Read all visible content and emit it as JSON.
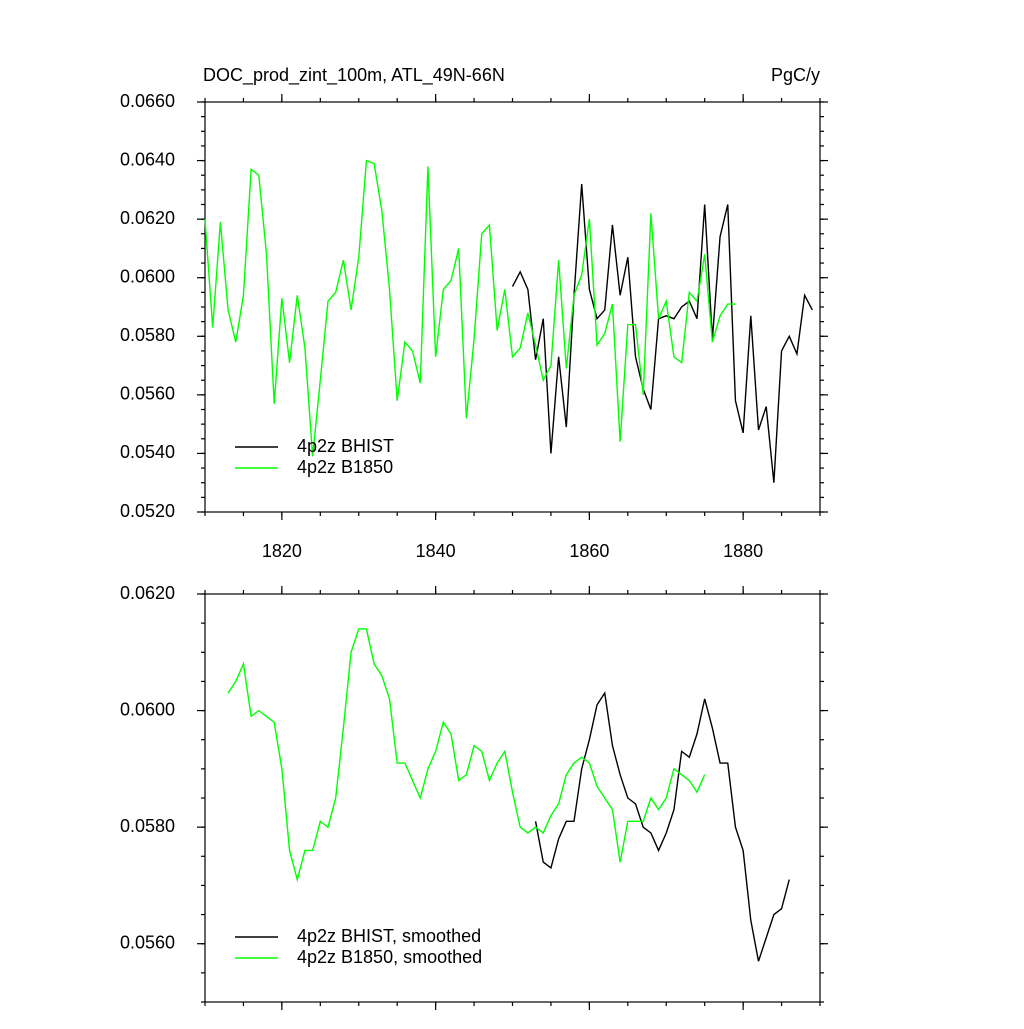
{
  "chart_data": [
    {
      "type": "line",
      "title": "DOC_prod_zint_100m, ATL_49N-66N",
      "units_label": "PgC/y",
      "xlim": [
        1810,
        1890
      ],
      "xticks": [
        1820,
        1840,
        1860,
        1880
      ],
      "ylim": [
        0.052,
        0.066
      ],
      "yticks": [
        {
          "value": 0.052,
          "label": "0.0520"
        },
        {
          "value": 0.054,
          "label": "0.0540"
        },
        {
          "value": 0.056,
          "label": "0.0560"
        },
        {
          "value": 0.058,
          "label": "0.0580"
        },
        {
          "value": 0.06,
          "label": "0.0600"
        },
        {
          "value": 0.062,
          "label": "0.0620"
        },
        {
          "value": 0.064,
          "label": "0.0640"
        },
        {
          "value": 0.066,
          "label": "0.0660"
        }
      ],
      "legend": "lower left",
      "series": [
        {
          "name": "4p2z BHIST",
          "color": "#000000",
          "x": [
            1850,
            1851,
            1852,
            1853,
            1854,
            1855,
            1856,
            1857,
            1858,
            1859,
            1860,
            1861,
            1862,
            1863,
            1864,
            1865,
            1866,
            1867,
            1868,
            1869,
            1870,
            1871,
            1872,
            1873,
            1874,
            1875,
            1876,
            1877,
            1878,
            1879,
            1880,
            1881,
            1882,
            1883,
            1884,
            1885,
            1886,
            1887,
            1888,
            1889
          ],
          "values": [
            0.0597,
            0.0602,
            0.0596,
            0.0572,
            0.0586,
            0.054,
            0.0573,
            0.0549,
            0.0594,
            0.0632,
            0.0596,
            0.0586,
            0.0589,
            0.0618,
            0.0594,
            0.0607,
            0.0573,
            0.0562,
            0.0555,
            0.0586,
            0.0587,
            0.0586,
            0.059,
            0.0592,
            0.0586,
            0.0625,
            0.0579,
            0.0614,
            0.0625,
            0.0558,
            0.0547,
            0.0587,
            0.0548,
            0.0556,
            0.053,
            0.0575,
            0.058,
            0.0574,
            0.0594,
            0.0589
          ]
        },
        {
          "name": "4p2z B1850",
          "color": "#00ff00",
          "x": [
            1810,
            1811,
            1812,
            1813,
            1814,
            1815,
            1816,
            1817,
            1818,
            1819,
            1820,
            1821,
            1822,
            1823,
            1824,
            1825,
            1826,
            1827,
            1828,
            1829,
            1830,
            1831,
            1832,
            1833,
            1834,
            1835,
            1836,
            1837,
            1838,
            1839,
            1840,
            1841,
            1842,
            1843,
            1844,
            1845,
            1846,
            1847,
            1848,
            1849,
            1850,
            1851,
            1852,
            1853,
            1854,
            1855,
            1856,
            1857,
            1858,
            1859,
            1860,
            1861,
            1862,
            1863,
            1864,
            1865,
            1866,
            1867,
            1868,
            1869,
            1870,
            1871,
            1872,
            1873,
            1874,
            1875,
            1876,
            1877,
            1878,
            1879
          ],
          "values": [
            0.062,
            0.0583,
            0.0619,
            0.0589,
            0.0578,
            0.0594,
            0.0637,
            0.0635,
            0.0608,
            0.0557,
            0.0593,
            0.0571,
            0.0594,
            0.0576,
            0.0539,
            0.0565,
            0.0592,
            0.0595,
            0.0606,
            0.0589,
            0.0607,
            0.064,
            0.0639,
            0.0623,
            0.0596,
            0.0558,
            0.0578,
            0.0575,
            0.0564,
            0.0638,
            0.0573,
            0.0596,
            0.0599,
            0.061,
            0.0552,
            0.0579,
            0.0615,
            0.0618,
            0.0582,
            0.0596,
            0.0573,
            0.0576,
            0.0588,
            0.0577,
            0.0565,
            0.057,
            0.0606,
            0.0569,
            0.0594,
            0.0601,
            0.062,
            0.0577,
            0.0581,
            0.0591,
            0.0544,
            0.0584,
            0.0584,
            0.056,
            0.0622,
            0.0586,
            0.0592,
            0.0573,
            0.0571,
            0.0595,
            0.0592,
            0.0608,
            0.0578,
            0.0587,
            0.0591,
            0.0591
          ]
        }
      ]
    },
    {
      "type": "line",
      "xlim": [
        1810,
        1890
      ],
      "xticks": [
        1820,
        1840,
        1860,
        1880
      ],
      "ylim": [
        0.055,
        0.062
      ],
      "yticks": [
        {
          "value": 0.056,
          "label": "0.0560"
        },
        {
          "value": 0.058,
          "label": "0.0580"
        },
        {
          "value": 0.06,
          "label": "0.0600"
        },
        {
          "value": 0.062,
          "label": "0.0620"
        }
      ],
      "legend": "lower left",
      "series": [
        {
          "name": "4p2z BHIST, smoothed",
          "color": "#000000",
          "x": [
            1853,
            1854,
            1855,
            1856,
            1857,
            1858,
            1859,
            1860,
            1861,
            1862,
            1863,
            1864,
            1865,
            1866,
            1867,
            1868,
            1869,
            1870,
            1871,
            1872,
            1873,
            1874,
            1875,
            1876,
            1877,
            1878,
            1879,
            1880,
            1881,
            1882,
            1883,
            1884,
            1885,
            1886
          ],
          "values": [
            0.0581,
            0.0574,
            0.0573,
            0.0578,
            0.0581,
            0.0581,
            0.059,
            0.0595,
            0.0601,
            0.0603,
            0.0594,
            0.0589,
            0.0585,
            0.0584,
            0.058,
            0.0579,
            0.0576,
            0.0579,
            0.0583,
            0.0593,
            0.0592,
            0.0596,
            0.0602,
            0.0597,
            0.0591,
            0.0591,
            0.058,
            0.0576,
            0.0564,
            0.0557,
            0.0561,
            0.0565,
            0.0566,
            0.0571
          ]
        },
        {
          "name": "4p2z B1850, smoothed",
          "color": "#00ff00",
          "x": [
            1813,
            1814,
            1815,
            1816,
            1817,
            1818,
            1819,
            1820,
            1821,
            1822,
            1823,
            1824,
            1825,
            1826,
            1827,
            1828,
            1829,
            1830,
            1831,
            1832,
            1833,
            1834,
            1835,
            1836,
            1837,
            1838,
            1839,
            1840,
            1841,
            1842,
            1843,
            1844,
            1845,
            1846,
            1847,
            1848,
            1849,
            1850,
            1851,
            1852,
            1853,
            1854,
            1855,
            1856,
            1857,
            1858,
            1859,
            1860,
            1861,
            1862,
            1863,
            1864,
            1865,
            1866,
            1867,
            1868,
            1869,
            1870,
            1871,
            1872,
            1873,
            1874,
            1875
          ],
          "values": [
            0.0603,
            0.0605,
            0.0608,
            0.0599,
            0.06,
            0.0599,
            0.0598,
            0.059,
            0.0576,
            0.0571,
            0.0576,
            0.0576,
            0.0581,
            0.058,
            0.0585,
            0.0597,
            0.061,
            0.0614,
            0.0614,
            0.0608,
            0.0606,
            0.0602,
            0.0591,
            0.0591,
            0.0588,
            0.0585,
            0.059,
            0.0593,
            0.0598,
            0.0596,
            0.0588,
            0.0589,
            0.0594,
            0.0593,
            0.0588,
            0.0591,
            0.0593,
            0.0586,
            0.058,
            0.0579,
            0.058,
            0.0579,
            0.0582,
            0.0584,
            0.0589,
            0.0591,
            0.0592,
            0.0591,
            0.0587,
            0.0585,
            0.0583,
            0.0574,
            0.0581,
            0.0581,
            0.0581,
            0.0585,
            0.0583,
            0.0585,
            0.059,
            0.0589,
            0.0588,
            0.0586,
            0.0589
          ]
        }
      ]
    }
  ]
}
